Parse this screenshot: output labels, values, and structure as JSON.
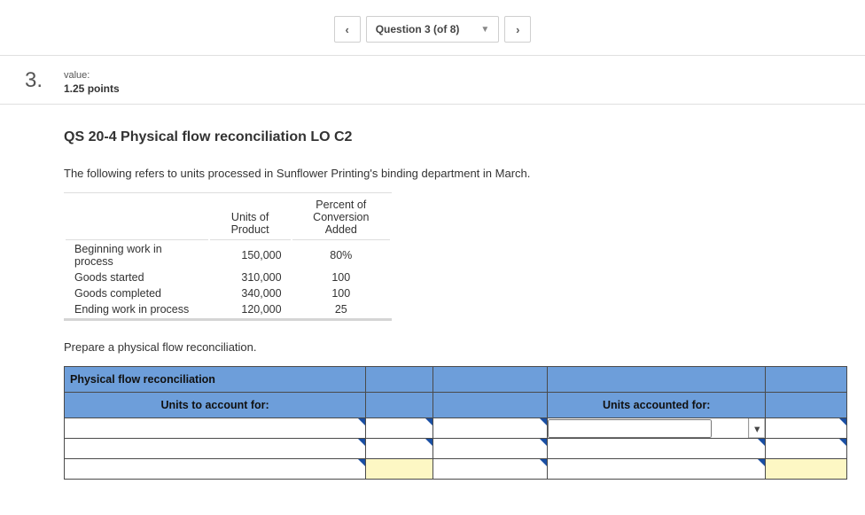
{
  "nav": {
    "prev_icon": "‹",
    "next_icon": "›",
    "label": "Question 3 (of 8)"
  },
  "header": {
    "question_number": "3.",
    "value_label": "value:",
    "points": "1.25 points"
  },
  "title": "QS 20-4 Physical flow reconciliation LO C2",
  "intro": "The following refers to units processed in Sunflower Printing's binding department in March.",
  "data_table": {
    "col_units_l1": "Units of",
    "col_units_l2": "Product",
    "col_pct_l1": "Percent of",
    "col_pct_l2": "Conversion",
    "col_pct_l3": "Added",
    "rows": [
      {
        "label": "Beginning work in process",
        "units": "150,000",
        "pct": "80%"
      },
      {
        "label": "Goods started",
        "units": "310,000",
        "pct": "100"
      },
      {
        "label": "Goods completed",
        "units": "340,000",
        "pct": "100"
      },
      {
        "label": "Ending work in process",
        "units": "120,000",
        "pct": "25"
      }
    ]
  },
  "instruction": "Prepare a physical flow reconciliation.",
  "worksheet": {
    "header_title": "Physical flow reconciliation",
    "left_header": "Units to account for:",
    "right_header": "Units accounted for:",
    "header_bg": "#6d9eda",
    "highlight_bg": "#fdf7c4",
    "border_color": "#4a4a4a"
  }
}
